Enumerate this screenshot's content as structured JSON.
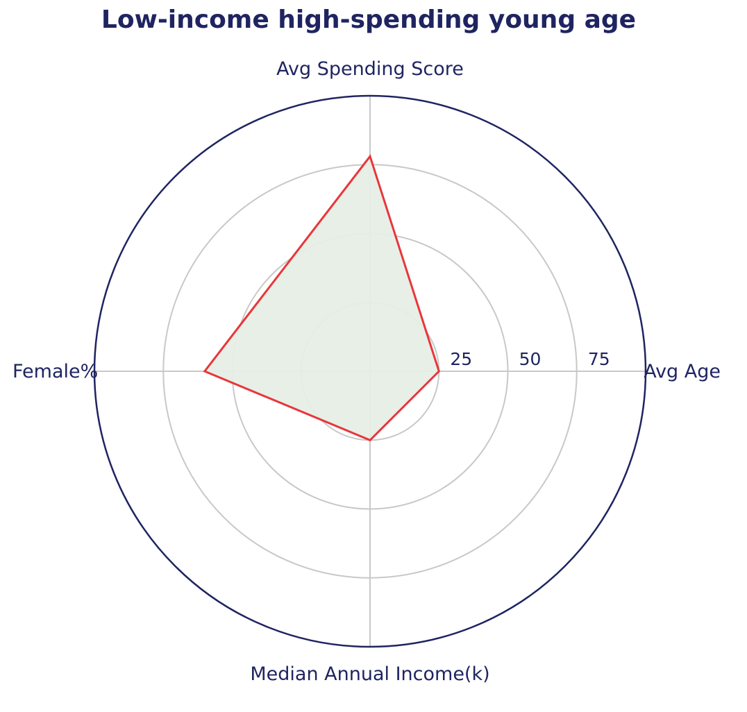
{
  "chart_data": {
    "type": "radar",
    "title": "Low-income high-spending young age",
    "axes": [
      "Avg Age",
      "Avg Spending Score",
      "Female%",
      "Median Annual Income(k)"
    ],
    "range": [
      0,
      100
    ],
    "ticks": [
      25,
      50,
      75
    ],
    "tick_labels": [
      "25",
      "50",
      "75"
    ],
    "grid": true,
    "series": [
      {
        "values": [
          25,
          78,
          60,
          25
        ]
      }
    ],
    "colors": {
      "series_line": "#e8363a",
      "series_fill": "#e6eee6",
      "outer_ring": "#1f2461",
      "grid": "#c8c8c8",
      "text": "#1f2461"
    }
  }
}
